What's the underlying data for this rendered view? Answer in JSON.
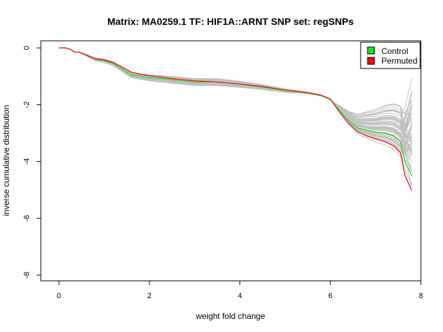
{
  "chart_data": {
    "type": "line",
    "title": "Matrix: MA0259.1 TF: HIF1A::ARNT SNP set: regSNPs",
    "xlabel": "weight fold change",
    "ylabel": "inverse cumulative distribution",
    "xlim": [
      -0.4,
      8.0
    ],
    "ylim": [
      -8.2,
      0.25
    ],
    "x_ticks": [
      0,
      2,
      4,
      6,
      8
    ],
    "y_ticks": [
      0,
      -2,
      -4,
      -6,
      -8
    ],
    "grid": false,
    "legend_position": "top-right",
    "legend": [
      {
        "label": "Control",
        "color": "#22dd22"
      },
      {
        "label": "Permuted",
        "color": "#ee1111"
      }
    ],
    "background_series_count": 60,
    "background_color": "#c0c0c0",
    "series": [
      {
        "name": "Control",
        "color": "#22dd22",
        "x": [
          0,
          0.15,
          0.25,
          0.35,
          0.45,
          0.6,
          0.8,
          1.0,
          1.2,
          1.4,
          1.6,
          1.8,
          2.0,
          2.5,
          3.0,
          3.5,
          4.0,
          4.5,
          5.0,
          5.5,
          5.8,
          6.0,
          6.2,
          6.4,
          6.6,
          6.8,
          7.0,
          7.2,
          7.4,
          7.55,
          7.65,
          7.8
        ],
        "values": [
          0,
          0,
          -0.05,
          -0.15,
          -0.15,
          -0.25,
          -0.4,
          -0.45,
          -0.55,
          -0.75,
          -0.95,
          -1.0,
          -1.05,
          -1.12,
          -1.2,
          -1.2,
          -1.28,
          -1.38,
          -1.5,
          -1.58,
          -1.68,
          -1.82,
          -2.2,
          -2.55,
          -2.82,
          -2.9,
          -2.98,
          -3.0,
          -3.1,
          -3.3,
          -4.0,
          -4.5
        ]
      },
      {
        "name": "Permuted",
        "color": "#ee1111",
        "x": [
          0,
          0.15,
          0.25,
          0.35,
          0.45,
          0.6,
          0.8,
          1.0,
          1.2,
          1.4,
          1.6,
          1.8,
          2.0,
          2.5,
          3.0,
          3.5,
          4.0,
          4.5,
          5.0,
          5.5,
          5.8,
          6.0,
          6.2,
          6.4,
          6.6,
          6.8,
          7.0,
          7.2,
          7.4,
          7.55,
          7.65,
          7.8
        ],
        "values": [
          0,
          0,
          -0.05,
          -0.15,
          -0.15,
          -0.25,
          -0.38,
          -0.42,
          -0.52,
          -0.68,
          -0.85,
          -0.93,
          -0.98,
          -1.08,
          -1.16,
          -1.2,
          -1.27,
          -1.36,
          -1.48,
          -1.58,
          -1.66,
          -1.8,
          -2.25,
          -2.65,
          -2.95,
          -3.1,
          -3.2,
          -3.3,
          -3.45,
          -3.7,
          -4.5,
          -5.0
        ]
      }
    ]
  }
}
